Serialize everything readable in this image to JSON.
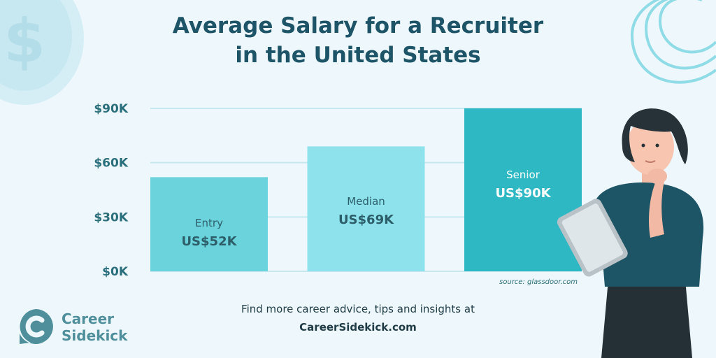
{
  "title": {
    "line1": "Average Salary for a Recruiter",
    "line2": "in the United States"
  },
  "chart_data": {
    "type": "bar",
    "title": "Average Salary for a Recruiter in the United States",
    "categories": [
      "Entry",
      "Median",
      "Senior"
    ],
    "values": [
      52,
      69,
      90
    ],
    "value_labels": [
      "US$52K",
      "US$69K",
      "US$90K"
    ],
    "y_ticks": [
      "$0K",
      "$30K",
      "$60K",
      "$90K"
    ],
    "tick_values": [
      0,
      30,
      60,
      90
    ],
    "ylim": [
      0,
      90
    ],
    "grid": true,
    "source": "source: glassdoor.com",
    "colors": {
      "bars": [
        "#6bd3dc",
        "#8ee2ec",
        "#2eb8c3"
      ],
      "category_label": [
        "#2c5e6a",
        "#2c5e6a",
        "#ffffff"
      ],
      "value_label": [
        "#2c5e6a",
        "#2c5e6a",
        "#ffffff"
      ],
      "axis_text": "#2b6f7c",
      "grid": "#c6e7f0"
    }
  },
  "footer": {
    "line1": "Find more career advice, tips and insights at",
    "line2": "CareerSidekick.com"
  },
  "brand": {
    "line1": "Career",
    "line2": "Sidekick",
    "logo_icon": "career-sidekick-logo-icon",
    "color": "#4f8f9b"
  },
  "illustration": {
    "icon": "woman-with-tablet-illustration"
  }
}
